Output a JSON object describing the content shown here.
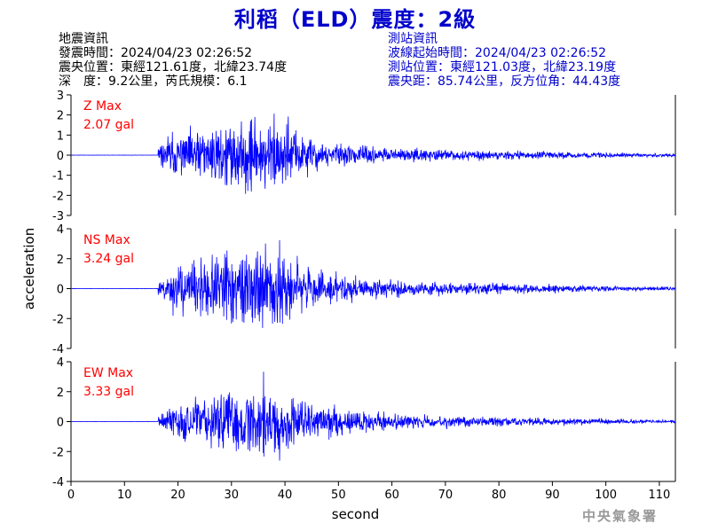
{
  "header": {
    "title": "利稻（ELD）震度：2級",
    "title_color": "#0000cc"
  },
  "earthquake_info": {
    "heading": "地震資訊",
    "origin_time": "發震時間：2024/04/23 02:26:52",
    "epicenter": "震央位置：東經121.61度，北緯23.74度",
    "depth_magnitude": "深　度：9.2公里，芮氏規模：6.1"
  },
  "station_info": {
    "heading": "測站資訊",
    "wave_start_time": "波線起始時間：2024/04/23 02:26:52",
    "station_location": "測站位置：東經121.03度，北緯23.19度",
    "distance_azimuth": "震央距：85.74公里，反方位角：44.43度",
    "color": "#0000cc"
  },
  "watermark": "中央氣象署",
  "chart_data": [
    {
      "type": "line",
      "component": "Z",
      "label_line1": "Z Max",
      "label_line2": "2.07 gal",
      "max_gal": 2.07,
      "ylim": [
        -3,
        3
      ],
      "yticks": [
        "-3",
        "-2",
        "-1",
        "0",
        "1",
        "2",
        "3"
      ],
      "ytick_values": [
        -3,
        -2,
        -1,
        0,
        1,
        2,
        3
      ],
      "onset_s": 16.3,
      "peak_time_s": 38,
      "envelope": [
        {
          "t": 16.3,
          "a": 0.3
        },
        {
          "t": 18,
          "a": 0.8
        },
        {
          "t": 25,
          "a": 1.1
        },
        {
          "t": 30,
          "a": 1.35
        },
        {
          "t": 35,
          "a": 1.6
        },
        {
          "t": 40,
          "a": 1.4
        },
        {
          "t": 45,
          "a": 0.7
        },
        {
          "t": 50,
          "a": 0.45
        },
        {
          "t": 60,
          "a": 0.28
        },
        {
          "t": 70,
          "a": 0.22
        },
        {
          "t": 85,
          "a": 0.15
        },
        {
          "t": 113,
          "a": 0.07
        }
      ],
      "seed": 11
    },
    {
      "type": "line",
      "component": "NS",
      "label_line1": "NS Max",
      "label_line2": "3.24 gal",
      "max_gal": 3.24,
      "ylim": [
        -4,
        4
      ],
      "yticks": [
        "-4",
        "-2",
        "0",
        "2",
        "4"
      ],
      "ytick_values": [
        -4,
        -2,
        0,
        2,
        4
      ],
      "onset_s": 16.3,
      "peak_time_s": 39,
      "envelope": [
        {
          "t": 16.3,
          "a": 0.35
        },
        {
          "t": 19,
          "a": 1.2
        },
        {
          "t": 25,
          "a": 1.7
        },
        {
          "t": 30,
          "a": 2.0
        },
        {
          "t": 36,
          "a": 2.2
        },
        {
          "t": 40,
          "a": 1.9
        },
        {
          "t": 45,
          "a": 1.0
        },
        {
          "t": 50,
          "a": 0.75
        },
        {
          "t": 55,
          "a": 0.55
        },
        {
          "t": 65,
          "a": 0.4
        },
        {
          "t": 80,
          "a": 0.28
        },
        {
          "t": 113,
          "a": 0.1
        }
      ],
      "seed": 23
    },
    {
      "type": "line",
      "component": "EW",
      "label_line1": "EW Max",
      "label_line2": "3.33 gal",
      "max_gal": 3.33,
      "ylim": [
        -4,
        4
      ],
      "yticks": [
        "-4",
        "-2",
        "0",
        "2",
        "4"
      ],
      "ytick_values": [
        -4,
        -2,
        0,
        2,
        4
      ],
      "onset_s": 16.3,
      "peak_time_s": 36,
      "envelope": [
        {
          "t": 16.3,
          "a": 0.3
        },
        {
          "t": 19,
          "a": 0.9
        },
        {
          "t": 25,
          "a": 1.4
        },
        {
          "t": 30,
          "a": 1.8
        },
        {
          "t": 35,
          "a": 2.1
        },
        {
          "t": 40,
          "a": 1.7
        },
        {
          "t": 45,
          "a": 1.1
        },
        {
          "t": 50,
          "a": 0.75
        },
        {
          "t": 60,
          "a": 0.45
        },
        {
          "t": 70,
          "a": 0.32
        },
        {
          "t": 90,
          "a": 0.2
        },
        {
          "t": 113,
          "a": 0.08
        }
      ],
      "seed": 37
    }
  ],
  "x_axis": {
    "label": "second",
    "xlim": [
      0,
      113
    ],
    "ticks": [
      0,
      10,
      20,
      30,
      40,
      50,
      60,
      70,
      80,
      90,
      100,
      110
    ],
    "tick_labels": [
      "0",
      "10",
      "20",
      "30",
      "40",
      "50",
      "60",
      "70",
      "80",
      "90",
      "100",
      "110"
    ]
  },
  "y_axis_label": "acceleration",
  "colors": {
    "trace": "#0000ff",
    "max_label": "#ff0000",
    "axis": "#000000"
  }
}
